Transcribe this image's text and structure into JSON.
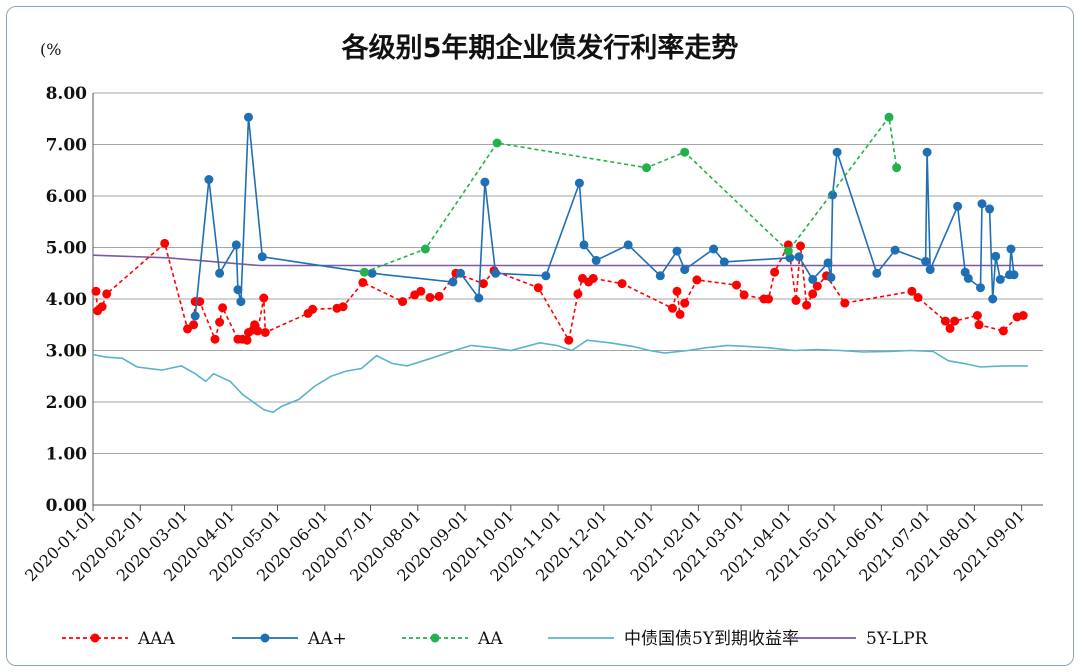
{
  "chart_data": {
    "type": "line",
    "title": "各级别5年期企业债发行利率走势",
    "unit_label": "(%",
    "ylim": [
      0,
      8
    ],
    "yticks": [
      "0.00",
      "1.00",
      "2.00",
      "3.00",
      "4.00",
      "5.00",
      "6.00",
      "7.00",
      "8.00"
    ],
    "xlim": [
      "2020-01-01",
      "2021-09-15"
    ],
    "xticks": [
      "2020-01-01",
      "2020-02-01",
      "2020-03-01",
      "2020-04-01",
      "2020-05-01",
      "2020-06-01",
      "2020-07-01",
      "2020-08-01",
      "2020-09-01",
      "2020-10-01",
      "2020-11-01",
      "2020-12-01",
      "2021-01-01",
      "2021-02-01",
      "2021-03-01",
      "2021-04-01",
      "2021-05-01",
      "2021-06-01",
      "2021-07-01",
      "2021-08-01",
      "2021-09-01"
    ],
    "grid": "horizontal",
    "legend_position": "bottom",
    "series": [
      {
        "name": "AAA",
        "color": "#ff0000",
        "style": "dashed",
        "marker": "circle",
        "points": [
          [
            "2020-01-03",
            4.15
          ],
          [
            "2020-01-04",
            3.77
          ],
          [
            "2020-01-07",
            3.85
          ],
          [
            "2020-01-10",
            4.1
          ],
          [
            "2020-02-17",
            5.08
          ],
          [
            "2020-03-03",
            3.42
          ],
          [
            "2020-03-07",
            3.5
          ],
          [
            "2020-03-08",
            3.95
          ],
          [
            "2020-03-11",
            3.95
          ],
          [
            "2020-03-21",
            3.22
          ],
          [
            "2020-03-24",
            3.55
          ],
          [
            "2020-03-26",
            3.83
          ],
          [
            "2020-04-05",
            3.22
          ],
          [
            "2020-04-08",
            3.22
          ],
          [
            "2020-04-11",
            3.2
          ],
          [
            "2020-04-12",
            3.35
          ],
          [
            "2020-04-15",
            3.4
          ],
          [
            "2020-04-16",
            3.5
          ],
          [
            "2020-04-18",
            3.38
          ],
          [
            "2020-04-22",
            4.02
          ],
          [
            "2020-04-23",
            3.35
          ],
          [
            "2020-05-21",
            3.72
          ],
          [
            "2020-05-24",
            3.8
          ],
          [
            "2020-06-09",
            3.82
          ],
          [
            "2020-06-13",
            3.85
          ],
          [
            "2020-06-26",
            4.32
          ],
          [
            "2020-07-22",
            3.95
          ],
          [
            "2020-07-30",
            4.08
          ],
          [
            "2020-08-03",
            4.15
          ],
          [
            "2020-08-09",
            4.03
          ],
          [
            "2020-08-15",
            4.05
          ],
          [
            "2020-08-26",
            4.5
          ],
          [
            "2020-09-13",
            4.3
          ],
          [
            "2020-09-20",
            4.55
          ],
          [
            "2020-10-19",
            4.22
          ],
          [
            "2020-11-08",
            3.2
          ],
          [
            "2020-11-14",
            4.1
          ],
          [
            "2020-11-17",
            4.4
          ],
          [
            "2020-11-21",
            4.33
          ],
          [
            "2020-11-24",
            4.4
          ],
          [
            "2020-12-13",
            4.3
          ],
          [
            "2021-01-15",
            3.82
          ],
          [
            "2021-01-18",
            4.15
          ],
          [
            "2021-01-20",
            3.7
          ],
          [
            "2021-01-23",
            3.92
          ],
          [
            "2021-01-31",
            4.37
          ],
          [
            "2021-02-26",
            4.27
          ],
          [
            "2021-03-03",
            4.08
          ],
          [
            "2021-03-16",
            4.0
          ],
          [
            "2021-03-19",
            4.0
          ],
          [
            "2021-03-23",
            4.52
          ],
          [
            "2021-04-01",
            5.05
          ],
          [
            "2021-04-06",
            3.97
          ],
          [
            "2021-04-09",
            5.03
          ],
          [
            "2021-04-13",
            3.88
          ],
          [
            "2021-04-17",
            4.1
          ],
          [
            "2021-04-20",
            4.25
          ],
          [
            "2021-04-26",
            4.45
          ],
          [
            "2021-05-08",
            3.92
          ],
          [
            "2021-06-21",
            4.15
          ],
          [
            "2021-06-25",
            4.03
          ],
          [
            "2021-07-13",
            3.57
          ],
          [
            "2021-07-16",
            3.43
          ],
          [
            "2021-07-19",
            3.57
          ],
          [
            "2021-08-03",
            3.68
          ],
          [
            "2021-08-04",
            3.5
          ],
          [
            "2021-08-20",
            3.38
          ],
          [
            "2021-08-29",
            3.65
          ],
          [
            "2021-09-02",
            3.68
          ]
        ]
      },
      {
        "name": "AA+",
        "color": "#1f6fb5",
        "style": "solid",
        "marker": "circle",
        "points": [
          [
            "2020-03-08",
            3.67
          ],
          [
            "2020-03-17",
            6.32
          ],
          [
            "2020-03-24",
            4.5
          ],
          [
            "2020-04-04",
            5.05
          ],
          [
            "2020-04-05",
            4.18
          ],
          [
            "2020-04-07",
            3.95
          ],
          [
            "2020-04-12",
            7.53
          ],
          [
            "2020-04-21",
            4.82
          ],
          [
            "2020-07-02",
            4.5
          ],
          [
            "2020-08-24",
            4.33
          ],
          [
            "2020-08-29",
            4.5
          ],
          [
            "2020-09-10",
            4.02
          ],
          [
            "2020-09-14",
            6.27
          ],
          [
            "2020-09-21",
            4.5
          ],
          [
            "2020-10-24",
            4.45
          ],
          [
            "2020-11-15",
            6.25
          ],
          [
            "2020-11-18",
            5.05
          ],
          [
            "2020-11-26",
            4.75
          ],
          [
            "2020-12-17",
            5.05
          ],
          [
            "2021-01-07",
            4.45
          ],
          [
            "2021-01-18",
            4.93
          ],
          [
            "2021-01-23",
            4.57
          ],
          [
            "2021-02-11",
            4.97
          ],
          [
            "2021-02-18",
            4.72
          ],
          [
            "2021-04-02",
            4.8
          ],
          [
            "2021-04-08",
            4.82
          ],
          [
            "2021-04-17",
            4.38
          ],
          [
            "2021-04-27",
            4.7
          ],
          [
            "2021-04-29",
            4.42
          ],
          [
            "2021-04-30",
            6.02
          ],
          [
            "2021-05-03",
            6.85
          ],
          [
            "2021-05-29",
            4.5
          ],
          [
            "2021-06-10",
            4.95
          ],
          [
            "2021-06-30",
            4.73
          ],
          [
            "2021-07-01",
            6.85
          ],
          [
            "2021-07-03",
            4.57
          ],
          [
            "2021-07-21",
            5.8
          ],
          [
            "2021-07-26",
            4.52
          ],
          [
            "2021-07-28",
            4.4
          ],
          [
            "2021-08-05",
            4.22
          ],
          [
            "2021-08-06",
            5.85
          ],
          [
            "2021-08-11",
            5.75
          ],
          [
            "2021-08-13",
            4.0
          ],
          [
            "2021-08-15",
            4.83
          ],
          [
            "2021-08-18",
            4.38
          ],
          [
            "2021-08-24",
            4.47
          ],
          [
            "2021-08-25",
            4.97
          ],
          [
            "2021-08-27",
            4.47
          ]
        ]
      },
      {
        "name": "AA",
        "color": "#22b14c",
        "style": "dashed",
        "marker": "circle",
        "points": [
          [
            "2020-06-27",
            4.52
          ],
          [
            "2020-08-06",
            4.97
          ],
          [
            "2020-09-22",
            7.03
          ],
          [
            "2020-12-29",
            6.55
          ],
          [
            "2021-01-23",
            6.85
          ],
          [
            "2021-04-01",
            4.93
          ],
          [
            "2021-06-06",
            7.53
          ],
          [
            "2021-06-11",
            6.55
          ]
        ]
      },
      {
        "name": "中债国债5Y到期收益率",
        "color": "#5bb3c9",
        "style": "solid",
        "marker": "none",
        "points": [
          [
            "2020-01-01",
            2.92
          ],
          [
            "2020-01-10",
            2.87
          ],
          [
            "2020-01-20",
            2.85
          ],
          [
            "2020-01-30",
            2.68
          ],
          [
            "2020-02-15",
            2.62
          ],
          [
            "2020-02-28",
            2.7
          ],
          [
            "2020-03-08",
            2.55
          ],
          [
            "2020-03-15",
            2.4
          ],
          [
            "2020-03-20",
            2.55
          ],
          [
            "2020-03-31",
            2.4
          ],
          [
            "2020-04-08",
            2.15
          ],
          [
            "2020-04-15",
            2.0
          ],
          [
            "2020-04-22",
            1.85
          ],
          [
            "2020-04-28",
            1.8
          ],
          [
            "2020-05-04",
            1.92
          ],
          [
            "2020-05-15",
            2.05
          ],
          [
            "2020-05-25",
            2.3
          ],
          [
            "2020-06-05",
            2.5
          ],
          [
            "2020-06-15",
            2.6
          ],
          [
            "2020-06-25",
            2.65
          ],
          [
            "2020-07-05",
            2.9
          ],
          [
            "2020-07-15",
            2.75
          ],
          [
            "2020-07-25",
            2.7
          ],
          [
            "2020-08-10",
            2.85
          ],
          [
            "2020-08-25",
            3.0
          ],
          [
            "2020-09-05",
            3.1
          ],
          [
            "2020-09-20",
            3.05
          ],
          [
            "2020-10-01",
            3.0
          ],
          [
            "2020-10-20",
            3.15
          ],
          [
            "2020-10-31",
            3.1
          ],
          [
            "2020-11-10",
            3.0
          ],
          [
            "2020-11-20",
            3.2
          ],
          [
            "2020-12-05",
            3.15
          ],
          [
            "2020-12-20",
            3.08
          ],
          [
            "2020-12-31",
            3.0
          ],
          [
            "2021-01-10",
            2.95
          ],
          [
            "2021-01-25",
            3.0
          ],
          [
            "2021-02-05",
            3.05
          ],
          [
            "2021-02-20",
            3.1
          ],
          [
            "2021-03-05",
            3.08
          ],
          [
            "2021-03-20",
            3.05
          ],
          [
            "2021-04-05",
            3.0
          ],
          [
            "2021-04-20",
            3.02
          ],
          [
            "2021-05-05",
            3.0
          ],
          [
            "2021-05-20",
            2.97
          ],
          [
            "2021-06-05",
            2.98
          ],
          [
            "2021-06-20",
            3.0
          ],
          [
            "2021-07-05",
            2.98
          ],
          [
            "2021-07-15",
            2.8
          ],
          [
            "2021-07-25",
            2.75
          ],
          [
            "2021-08-05",
            2.68
          ],
          [
            "2021-08-20",
            2.7
          ],
          [
            "2021-09-05",
            2.7
          ]
        ]
      },
      {
        "name": "5Y-LPR",
        "color": "#7a5aa0",
        "style": "solid",
        "marker": "none",
        "points": [
          [
            "2020-01-01",
            4.85
          ],
          [
            "2020-02-19",
            4.8
          ],
          [
            "2020-04-19",
            4.65
          ],
          [
            "2021-09-15",
            4.65
          ]
        ]
      }
    ]
  }
}
